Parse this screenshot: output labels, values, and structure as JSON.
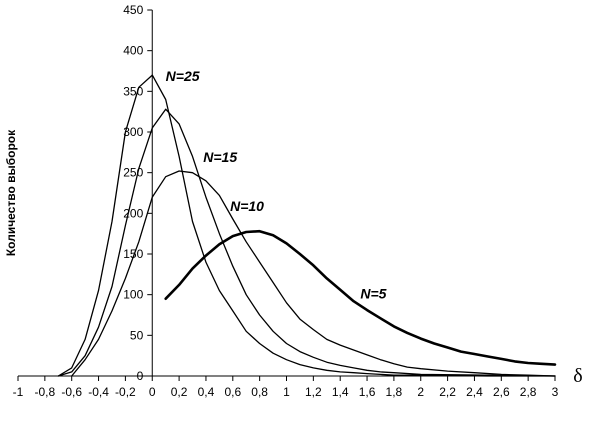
{
  "chart_data": {
    "type": "line",
    "title": "",
    "xlabel": "δ",
    "ylabel": "Количество выборок",
    "xlim": [
      -1,
      3
    ],
    "ylim": [
      0,
      450
    ],
    "x_ticks": [
      -1,
      -0.8,
      -0.6,
      -0.4,
      -0.2,
      0,
      0.2,
      0.4,
      0.6,
      0.8,
      1,
      1.2,
      1.4,
      1.6,
      1.8,
      2,
      2.2,
      2.4,
      2.6,
      2.8,
      3
    ],
    "x_tick_labels": [
      "-1",
      "-0,8",
      "-0,6",
      "-0,4",
      "-0,2",
      "0",
      "0,2",
      "0,4",
      "0,6",
      "0,8",
      "1",
      "1,2",
      "1,4",
      "1,6",
      "1,8",
      "2",
      "2,2",
      "2,4",
      "2,6",
      "2,8",
      "3"
    ],
    "y_ticks": [
      0,
      50,
      100,
      150,
      200,
      250,
      300,
      350,
      400,
      450
    ],
    "y_tick_labels": [
      "0",
      "50",
      "100",
      "150",
      "200",
      "250",
      "300",
      "350",
      "400",
      "450"
    ],
    "grid": false,
    "series": [
      {
        "name": "N=25",
        "line_width": "thin",
        "x": [
          -0.7,
          -0.6,
          -0.5,
          -0.4,
          -0.3,
          -0.2,
          -0.1,
          0,
          0.1,
          0.2,
          0.3,
          0.4,
          0.5,
          0.6,
          0.7,
          0.8,
          0.9,
          1.0,
          1.1,
          1.2,
          1.3,
          1.4,
          1.5,
          1.6,
          1.7,
          1.8,
          2.0,
          2.5,
          3.0
        ],
        "y": [
          0,
          10,
          45,
          105,
          190,
          300,
          355,
          370,
          340,
          270,
          190,
          140,
          105,
          80,
          55,
          40,
          28,
          20,
          14,
          10,
          7,
          5,
          4,
          3,
          2,
          1,
          1,
          0,
          0
        ]
      },
      {
        "name": "N=15",
        "line_width": "thin",
        "x": [
          -0.7,
          -0.6,
          -0.5,
          -0.4,
          -0.3,
          -0.2,
          -0.1,
          0,
          0.1,
          0.2,
          0.3,
          0.4,
          0.5,
          0.6,
          0.7,
          0.8,
          0.9,
          1.0,
          1.1,
          1.2,
          1.3,
          1.4,
          1.5,
          1.6,
          1.7,
          1.8,
          2.0,
          2.5,
          3.0
        ],
        "y": [
          0,
          5,
          25,
          60,
          110,
          185,
          255,
          305,
          328,
          310,
          270,
          220,
          175,
          135,
          100,
          75,
          55,
          40,
          30,
          23,
          17,
          13,
          10,
          7,
          5,
          4,
          2,
          1,
          0
        ]
      },
      {
        "name": "N=10",
        "line_width": "thin",
        "x": [
          -0.6,
          -0.5,
          -0.4,
          -0.3,
          -0.2,
          -0.1,
          0,
          0.1,
          0.2,
          0.3,
          0.4,
          0.5,
          0.6,
          0.7,
          0.8,
          0.9,
          1.0,
          1.1,
          1.2,
          1.3,
          1.4,
          1.5,
          1.6,
          1.7,
          1.8,
          1.9,
          2.0,
          2.2,
          2.4,
          2.6,
          2.8,
          3.0
        ],
        "y": [
          0,
          20,
          45,
          80,
          120,
          165,
          220,
          245,
          252,
          250,
          240,
          222,
          193,
          165,
          140,
          115,
          90,
          70,
          57,
          45,
          38,
          32,
          26,
          20,
          15,
          11,
          9,
          6,
          4,
          2,
          1,
          0
        ]
      },
      {
        "name": "N=5",
        "line_width": "thick",
        "x": [
          0.1,
          0.2,
          0.3,
          0.4,
          0.5,
          0.6,
          0.7,
          0.8,
          0.9,
          1.0,
          1.1,
          1.2,
          1.3,
          1.4,
          1.5,
          1.6,
          1.7,
          1.8,
          1.9,
          2.0,
          2.1,
          2.2,
          2.3,
          2.4,
          2.5,
          2.6,
          2.7,
          2.8,
          2.9,
          3.0
        ],
        "y": [
          95,
          112,
          132,
          148,
          162,
          172,
          177,
          178,
          173,
          163,
          150,
          136,
          120,
          106,
          92,
          81,
          71,
          61,
          53,
          46,
          40,
          35,
          30,
          27,
          24,
          21,
          18,
          16,
          15,
          14
        ]
      }
    ],
    "labels": [
      {
        "text": "N=25",
        "x": 0.1,
        "y": 363
      },
      {
        "text": "N=15",
        "x": 0.38,
        "y": 263
      },
      {
        "text": "N=10",
        "x": 0.58,
        "y": 203
      },
      {
        "text": "N=5",
        "x": 1.55,
        "y": 95
      }
    ]
  }
}
